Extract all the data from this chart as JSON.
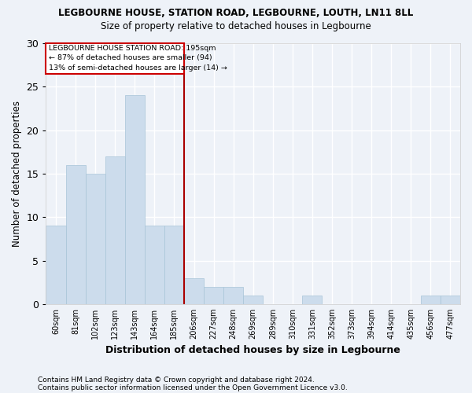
{
  "title": "LEGBOURNE HOUSE, STATION ROAD, LEGBOURNE, LOUTH, LN11 8LL",
  "subtitle": "Size of property relative to detached houses in Legbourne",
  "xlabel": "Distribution of detached houses by size in Legbourne",
  "ylabel": "Number of detached properties",
  "categories": [
    "60sqm",
    "81sqm",
    "102sqm",
    "123sqm",
    "143sqm",
    "164sqm",
    "185sqm",
    "206sqm",
    "227sqm",
    "248sqm",
    "269sqm",
    "289sqm",
    "310sqm",
    "331sqm",
    "352sqm",
    "373sqm",
    "394sqm",
    "414sqm",
    "435sqm",
    "456sqm",
    "477sqm"
  ],
  "values": [
    9,
    16,
    15,
    17,
    24,
    9,
    9,
    3,
    2,
    2,
    1,
    0,
    0,
    1,
    0,
    0,
    0,
    0,
    0,
    1,
    1
  ],
  "bar_color": "#ccdcec",
  "bar_edge_color": "#a8c4d8",
  "background_color": "#eef2f8",
  "grid_color": "#ffffff",
  "ylim": [
    0,
    30
  ],
  "yticks": [
    0,
    5,
    10,
    15,
    20,
    25,
    30
  ],
  "vline_x_index": 6.5,
  "vline_color": "#aa0000",
  "annotation_title": "LEGBOURNE HOUSE STATION ROAD: 195sqm",
  "annotation_line1": "← 87% of detached houses are smaller (94)",
  "annotation_line2": "13% of semi-detached houses are larger (14) →",
  "annotation_box_color": "#cc0000",
  "footer1": "Contains HM Land Registry data © Crown copyright and database right 2024.",
  "footer2": "Contains public sector information licensed under the Open Government Licence v3.0."
}
